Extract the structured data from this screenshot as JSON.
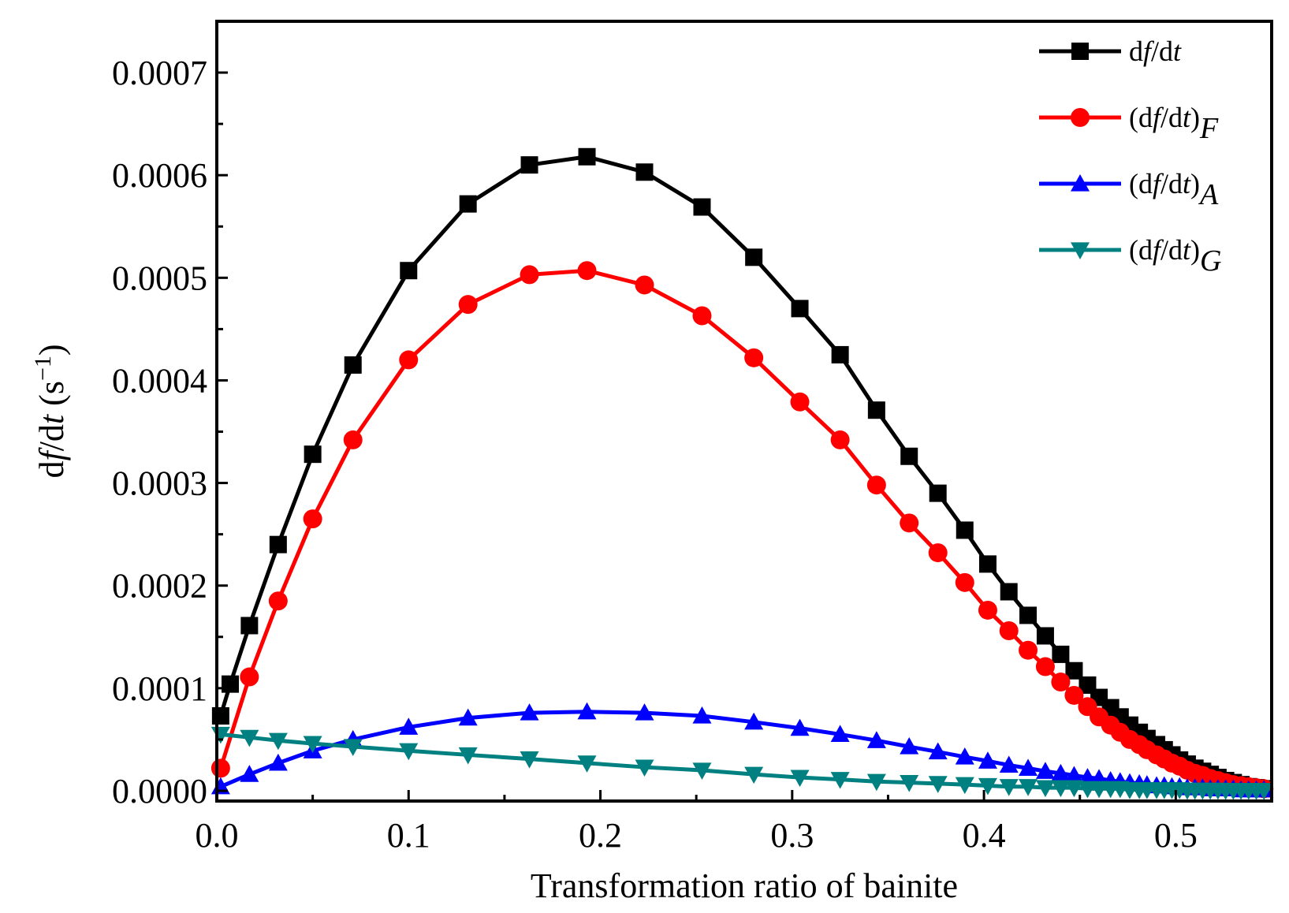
{
  "chart_data": {
    "type": "line",
    "title": "",
    "xlabel": "Transformation ratio of bainite",
    "ylabel": {
      "prefix": "d",
      "f": "f",
      "mid": "/d",
      "t": "t",
      "unit_open": " (s",
      "unit_sup": "−1",
      "unit_close": ")"
    },
    "xlim": [
      0.0,
      0.55
    ],
    "ylim": [
      -1e-05,
      0.00075
    ],
    "x_ticks": [
      0.0,
      0.1,
      0.2,
      0.3,
      0.4,
      0.5
    ],
    "x_tick_labels": [
      "0.0",
      "0.1",
      "0.2",
      "0.3",
      "0.4",
      "0.5"
    ],
    "y_ticks": [
      0.0,
      0.0001,
      0.0002,
      0.0003,
      0.0004,
      0.0005,
      0.0006,
      0.0007
    ],
    "y_tick_labels": [
      "0.0000",
      "0.0001",
      "0.0002",
      "0.0003",
      "0.0004",
      "0.0005",
      "0.0006",
      "0.0007"
    ],
    "grid": false,
    "legend_position": "top-right",
    "series": [
      {
        "name": "df/dt",
        "legend": {
          "main": "d",
          "it1": "f",
          "mid": "/d",
          "it2": "t",
          "sub": ""
        },
        "color": "#000000",
        "marker": "square",
        "x": [
          0.002,
          0.007,
          0.017,
          0.032,
          0.05,
          0.071,
          0.1,
          0.131,
          0.163,
          0.193,
          0.223,
          0.253,
          0.28,
          0.304,
          0.325,
          0.344,
          0.361,
          0.376,
          0.39,
          0.402,
          0.413,
          0.423,
          0.432,
          0.44,
          0.447,
          0.454,
          0.46,
          0.466,
          0.471,
          0.476,
          0.481,
          0.485,
          0.49,
          0.494,
          0.498,
          0.502,
          0.506,
          0.51,
          0.514,
          0.518,
          0.522,
          0.526,
          0.53,
          0.534,
          0.538,
          0.542,
          0.546
        ],
        "y": [
          7.3e-05,
          0.000104,
          0.000161,
          0.00024,
          0.000328,
          0.000415,
          0.000507,
          0.000572,
          0.00061,
          0.000618,
          0.000603,
          0.000569,
          0.00052,
          0.00047,
          0.000425,
          0.000371,
          0.000326,
          0.00029,
          0.000254,
          0.000221,
          0.000194,
          0.000171,
          0.000151,
          0.000133,
          0.000117,
          0.000103,
          9.1e-05,
          8.1e-05,
          7.2e-05,
          6.4e-05,
          5.7e-05,
          5.1e-05,
          4.5e-05,
          4e-05,
          3.5e-05,
          3e-05,
          2.6e-05,
          2.2e-05,
          1.9e-05,
          1.6e-05,
          1.3e-05,
          1e-05,
          8e-06,
          6e-06,
          4e-06,
          3e-06,
          2e-06
        ]
      },
      {
        "name": "(df/dt)F",
        "legend": {
          "main": "(d",
          "it1": "f",
          "mid": "/d",
          "it2": "t",
          "close": ")",
          "sub": "F"
        },
        "color": "#ff0000",
        "marker": "circle",
        "x": [
          0.002,
          0.017,
          0.032,
          0.05,
          0.071,
          0.1,
          0.131,
          0.163,
          0.193,
          0.223,
          0.253,
          0.28,
          0.304,
          0.325,
          0.344,
          0.361,
          0.376,
          0.39,
          0.402,
          0.413,
          0.423,
          0.432,
          0.44,
          0.447,
          0.454,
          0.46,
          0.466,
          0.471,
          0.476,
          0.481,
          0.485,
          0.49,
          0.494,
          0.498,
          0.502,
          0.506,
          0.51,
          0.514,
          0.518,
          0.522,
          0.526,
          0.53,
          0.534,
          0.538,
          0.542,
          0.546
        ],
        "y": [
          2.2e-05,
          0.000111,
          0.000185,
          0.000265,
          0.000342,
          0.00042,
          0.000474,
          0.000503,
          0.000507,
          0.000493,
          0.000463,
          0.000422,
          0.000379,
          0.000342,
          0.000298,
          0.000261,
          0.000232,
          0.000203,
          0.000176,
          0.000156,
          0.000137,
          0.000121,
          0.000106,
          9.3e-05,
          8.2e-05,
          7.2e-05,
          6.4e-05,
          5.7e-05,
          5e-05,
          4.5e-05,
          4e-05,
          3.5e-05,
          3.1e-05,
          2.7e-05,
          2.4e-05,
          2e-05,
          1.7e-05,
          1.5e-05,
          1.2e-05,
          1e-05,
          8e-06,
          6e-06,
          5e-06,
          4e-06,
          3e-06,
          2e-06
        ]
      },
      {
        "name": "(df/dt)A",
        "legend": {
          "main": "(d",
          "it1": "f",
          "mid": "/d",
          "it2": "t",
          "close": ")",
          "sub": "A"
        },
        "color": "#0000ff",
        "marker": "triangle-up",
        "x": [
          0.002,
          0.017,
          0.032,
          0.05,
          0.071,
          0.1,
          0.131,
          0.163,
          0.193,
          0.223,
          0.253,
          0.28,
          0.304,
          0.325,
          0.344,
          0.361,
          0.376,
          0.39,
          0.402,
          0.413,
          0.423,
          0.432,
          0.44,
          0.447,
          0.454,
          0.46,
          0.466,
          0.471,
          0.476,
          0.481,
          0.485,
          0.49,
          0.494,
          0.498,
          0.502,
          0.506,
          0.51,
          0.514,
          0.518,
          0.522,
          0.526,
          0.53,
          0.534,
          0.538,
          0.542,
          0.546
        ],
        "y": [
          4e-06,
          1.6e-05,
          2.7e-05,
          3.9e-05,
          5e-05,
          6.2e-05,
          7.1e-05,
          7.6e-05,
          7.7e-05,
          7.6e-05,
          7.3e-05,
          6.7e-05,
          6.1e-05,
          5.5e-05,
          4.9e-05,
          4.3e-05,
          3.8e-05,
          3.3e-05,
          2.9e-05,
          2.5e-05,
          2.2e-05,
          1.9e-05,
          1.7e-05,
          1.5e-05,
          1.3e-05,
          1.2e-05,
          1e-05,
          9e-06,
          8e-06,
          7e-06,
          6e-06,
          5e-06,
          5e-06,
          4e-06,
          4e-06,
          3e-06,
          3e-06,
          3e-06,
          2e-06,
          2e-06,
          2e-06,
          2e-06,
          1e-06,
          1e-06,
          1e-06,
          1e-06
        ]
      },
      {
        "name": "(df/dt)G",
        "legend": {
          "main": "(d",
          "it1": "f",
          "mid": "/d",
          "it2": "t",
          "close": ")",
          "sub": "G"
        },
        "color": "#008080",
        "marker": "triangle-down",
        "x": [
          0.002,
          0.017,
          0.032,
          0.05,
          0.071,
          0.1,
          0.131,
          0.163,
          0.193,
          0.223,
          0.253,
          0.28,
          0.304,
          0.325,
          0.344,
          0.361,
          0.376,
          0.39,
          0.402,
          0.413,
          0.423,
          0.432,
          0.44,
          0.447,
          0.454,
          0.46,
          0.466,
          0.471,
          0.476,
          0.481,
          0.485,
          0.49,
          0.494,
          0.498,
          0.502,
          0.506,
          0.51,
          0.514,
          0.518,
          0.522,
          0.526,
          0.53,
          0.534,
          0.538,
          0.542,
          0.546
        ],
        "y": [
          5.5e-05,
          5.2e-05,
          4.9e-05,
          4.6e-05,
          4.3e-05,
          3.9e-05,
          3.5e-05,
          3.1e-05,
          2.7e-05,
          2.3e-05,
          2e-05,
          1.6e-05,
          1.3e-05,
          1.1e-05,
          9e-06,
          8e-06,
          7e-06,
          6e-06,
          5e-06,
          4e-06,
          4e-06,
          3e-06,
          3e-06,
          3e-06,
          2e-06,
          2e-06,
          2e-06,
          2e-06,
          1e-06,
          1e-06,
          1e-06,
          1e-06,
          1e-06,
          1e-06,
          1e-06,
          5e-07,
          5e-07,
          5e-07,
          5e-07,
          5e-07,
          3e-07,
          3e-07,
          3e-07,
          3e-07,
          2e-07,
          2e-07
        ]
      }
    ]
  }
}
